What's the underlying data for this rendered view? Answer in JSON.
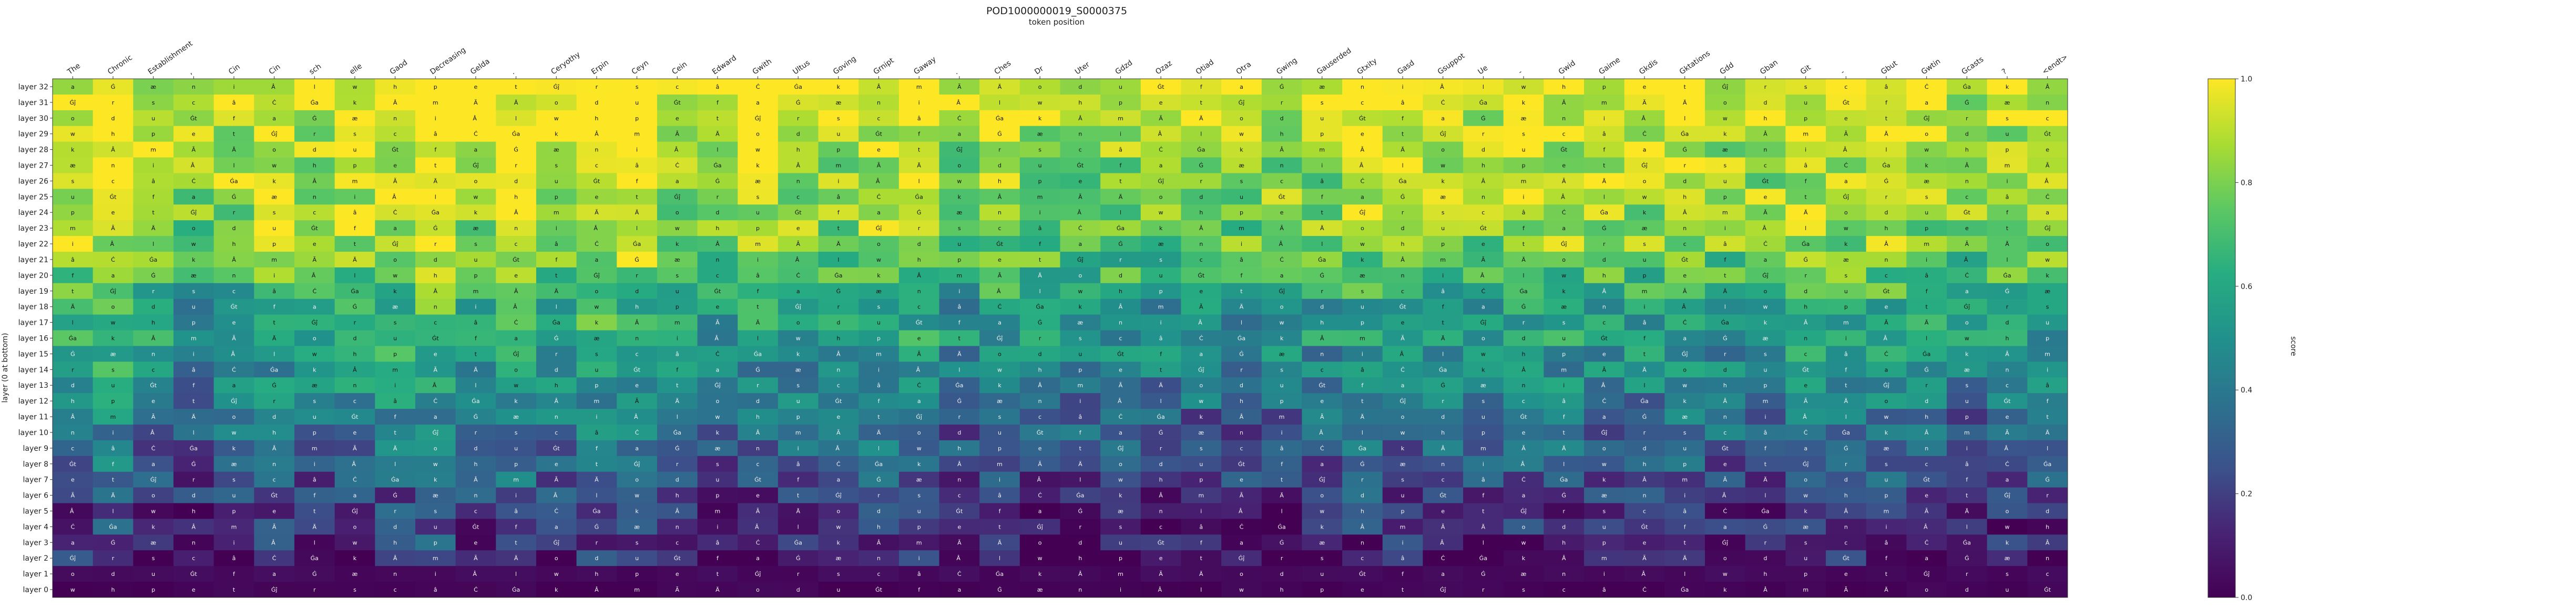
{
  "chart_data": {
    "type": "heatmap",
    "title": "POD1000000019_S0000375",
    "subtitle": "token position",
    "ylabel": "layer (0 at bottom)",
    "colorbar_label": "score",
    "colorbar_range": [
      0.0,
      1.0
    ],
    "colorbar_ticks": [
      "0.0",
      "0.2",
      "0.4",
      "0.6",
      "0.8",
      "1.0"
    ],
    "colormap": "viridis",
    "x_tokens": [
      "The",
      "Chronic",
      "Establishment",
      ",",
      "Cin",
      "Cin",
      "sch",
      "elle",
      "Gaod",
      "Decreasing",
      "Gelda",
      ".",
      "Ceryothy",
      "Erpin",
      "Ceyn",
      "Cein",
      "Edward",
      "Gwith",
      "Ultus",
      "Goving",
      "Grnipt",
      "Gaway",
      ".",
      "Ches",
      "Dr",
      "Uter",
      "Gdzd",
      "Ozaz",
      "Otiad",
      "Otra",
      "Gwing",
      "Gauserded",
      "Gtxity",
      "Gasd",
      "Gsuppot",
      "Ue",
      "-",
      "Gwid",
      "Gaime",
      "Gkdis",
      "Gktations",
      "Gdd",
      "Gban",
      "Git",
      "-",
      "Gbut",
      "Gwtin",
      "Gcasts",
      "?",
      "<endt>"
    ],
    "y_layers": [
      "layer 32",
      "layer 31",
      "layer 30",
      "layer 29",
      "layer 28",
      "layer 27",
      "layer 26",
      "layer 25",
      "layer 24",
      "layer 23",
      "layer 22",
      "layer 21",
      "layer 20",
      "layer 19",
      "layer 18",
      "layer 17",
      "layer 16",
      "layer 15",
      "layer 14",
      "layer 13",
      "layer 12",
      "layer 11",
      "layer 10",
      "layer 9",
      "layer 8",
      "layer 7",
      "layer 6",
      "layer 5",
      "layer 4",
      "layer 3",
      "layer 2",
      "layer 1",
      "layer 0"
    ],
    "layer_profile": [
      0.95,
      0.96,
      0.94,
      0.9,
      0.88,
      0.86,
      0.86,
      0.85,
      0.84,
      0.82,
      0.8,
      0.74,
      0.7,
      0.62,
      0.55,
      0.54,
      0.56,
      0.5,
      0.46,
      0.44,
      0.4,
      0.36,
      0.34,
      0.3,
      0.28,
      0.24,
      0.18,
      0.14,
      0.12,
      0.1,
      0.08,
      0.03,
      0.01
    ],
    "column_bias": [
      0.05,
      0.12,
      0.0,
      -0.05,
      0.0,
      0.05,
      0.0,
      0.05,
      0.08,
      0.15,
      0.02,
      0.1,
      0.05,
      0.12,
      0.12,
      0.0,
      -0.05,
      0.02,
      0.0,
      -0.02,
      0.05,
      0.05,
      -0.05,
      0.0,
      -0.04,
      -0.06,
      -0.05,
      -0.05,
      -0.05,
      -0.06,
      -0.04,
      -0.03,
      0.05,
      0.02,
      0.0,
      -0.02,
      0.05,
      0.02,
      0.0,
      0.0,
      0.03,
      -0.02,
      -0.02,
      0.03,
      0.02,
      0.05,
      0.0,
      -0.05,
      0.0,
      0.0
    ],
    "cell_symbols": [
      "a",
      "e",
      "Â",
      "Ġ",
      "t",
      "m",
      "æ",
      "Ġĵ",
      "Ã",
      "n",
      "r",
      "Ä",
      "i",
      "s",
      "o",
      "Â ",
      "c",
      "d",
      "l",
      "â",
      "u",
      "w",
      "Ċ",
      "Ġt",
      "h",
      "Ġa",
      "f",
      "p",
      "k"
    ]
  }
}
